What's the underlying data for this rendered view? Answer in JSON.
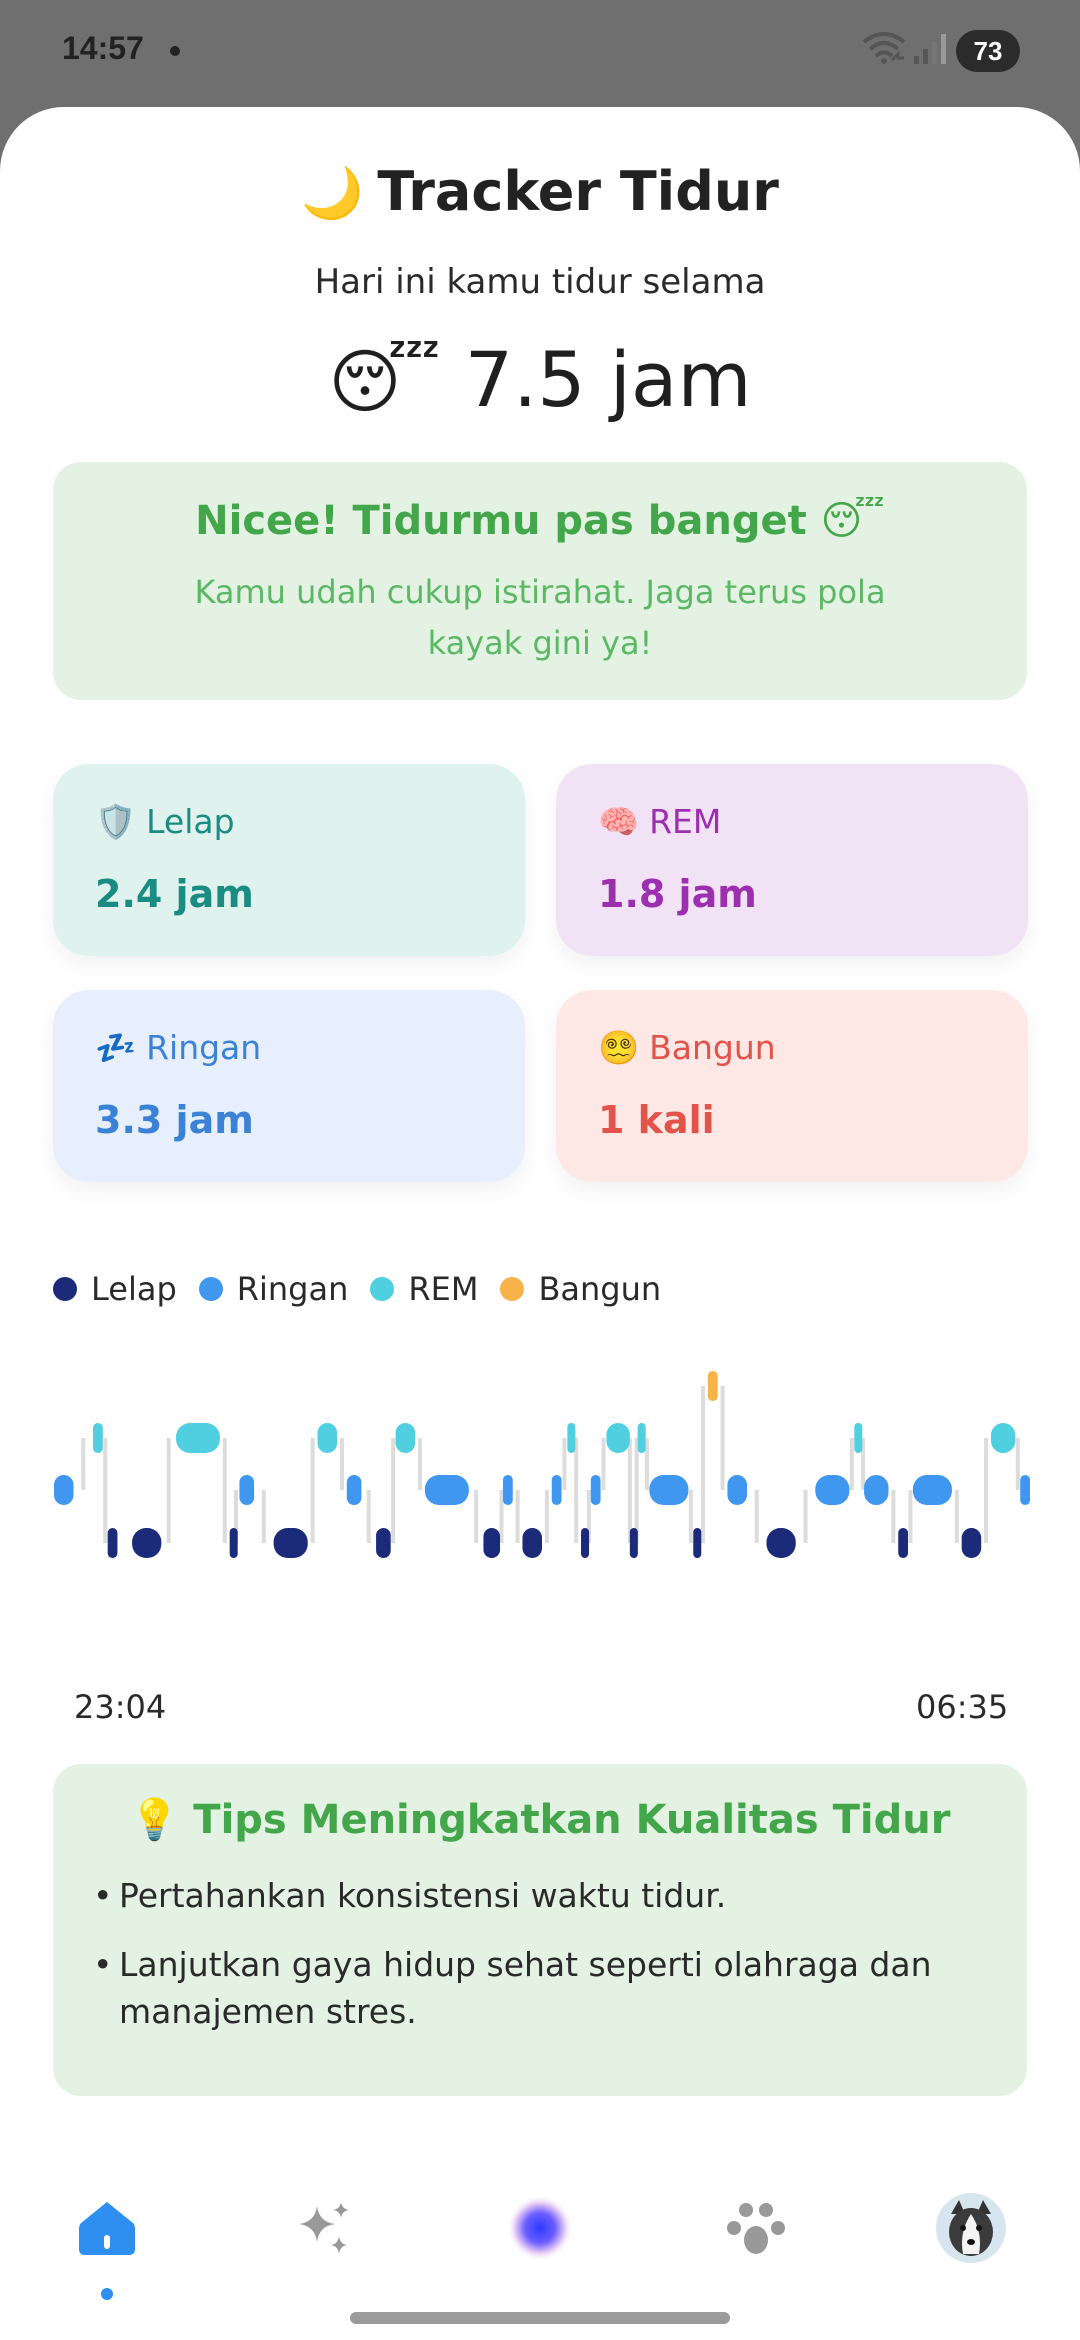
{
  "status_bar": {
    "time": "14:57",
    "battery": "73"
  },
  "header": {
    "icon": "crescent-moon",
    "title": "Tracker Tidur"
  },
  "summary": {
    "label": "Hari ini kamu tidur selama",
    "emoji": "sleeping-face",
    "hours": "7.5 jam"
  },
  "message": {
    "title": "Nicee! Tidurmu pas banget 😴",
    "body": "Kamu udah cukup istirahat. Jaga terus pola kayak gini ya!",
    "background": "#e3f2e3",
    "color": "#43a64a"
  },
  "stats": [
    {
      "icon": "shield-icon",
      "label": "Lelap",
      "value": "2.4 jam",
      "color": "#1a8c82"
    },
    {
      "icon": "brain-icon",
      "label": "REM",
      "value": "1.8 jam",
      "color": "#9b2fae"
    },
    {
      "icon": "zzz-icon",
      "label": "Ringan",
      "value": "3.3 jam",
      "color": "#3b82d6"
    },
    {
      "icon": "dizzy-face-icon",
      "label": "Bangun",
      "value": "1 kali",
      "color": "#e25449"
    }
  ],
  "legend": [
    {
      "name": "Lelap",
      "color": "#1c2a7a"
    },
    {
      "name": "Ringan",
      "color": "#3f97ef"
    },
    {
      "name": "REM",
      "color": "#4fcfdf"
    },
    {
      "name": "Bangun",
      "color": "#f7b24a"
    }
  ],
  "chart_data": {
    "type": "hypnogram",
    "start": "23:04",
    "end": "06:35",
    "levels": [
      "Bangun",
      "REM",
      "Ringan",
      "Lelap"
    ],
    "segments": [
      [
        "Ringan",
        0.0,
        2.0
      ],
      [
        "REM",
        4.0,
        5.0
      ],
      [
        "Lelap",
        5.5,
        6.5
      ],
      [
        "Lelap",
        8.0,
        11.0
      ],
      [
        "REM",
        12.5,
        17.0
      ],
      [
        "Lelap",
        18.0,
        18.3
      ],
      [
        "Ringan",
        19.0,
        20.5
      ],
      [
        "Lelap",
        22.5,
        26.0
      ],
      [
        "REM",
        27.0,
        29.0
      ],
      [
        "Ringan",
        30.0,
        31.5
      ],
      [
        "Lelap",
        33.0,
        34.5
      ],
      [
        "REM",
        35.0,
        37.0
      ],
      [
        "Ringan",
        38.0,
        42.5
      ],
      [
        "Lelap",
        44.0,
        45.7
      ],
      [
        "Ringan",
        46.0,
        47.0
      ],
      [
        "Lelap",
        48.0,
        50.0
      ],
      [
        "Ringan",
        51.0,
        52.0
      ],
      [
        "REM",
        52.6,
        53.0
      ],
      [
        "Lelap",
        54.0,
        54.6
      ],
      [
        "Ringan",
        55.0,
        56.0
      ],
      [
        "REM",
        56.6,
        59.0
      ],
      [
        "Lelap",
        59.0,
        59.6
      ],
      [
        "REM",
        59.8,
        60.5
      ],
      [
        "Ringan",
        61.0,
        65.0
      ],
      [
        "Lelap",
        65.5,
        66.0
      ],
      [
        "Bangun",
        67.0,
        68.0
      ],
      [
        "Ringan",
        69.0,
        71.0
      ],
      [
        "Lelap",
        73.0,
        76.0
      ],
      [
        "Ringan",
        78.0,
        81.5
      ],
      [
        "REM",
        82.0,
        82.8
      ],
      [
        "Ringan",
        83.0,
        85.5
      ],
      [
        "Lelap",
        86.5,
        87.5
      ],
      [
        "Ringan",
        88.0,
        92.0
      ],
      [
        "Lelap",
        93.0,
        95.0
      ],
      [
        "REM",
        96.0,
        98.5
      ],
      [
        "Ringan",
        99.0,
        100.0
      ]
    ]
  },
  "tips": {
    "title": "💡 Tips Meningkatkan Kualitas Tidur",
    "items": [
      "Pertahankan konsistensi waktu tidur.",
      "Lanjutkan gaya hidup sehat seperti olahraga dan manajemen stres."
    ]
  },
  "nav": [
    {
      "name": "home",
      "icon": "home-icon",
      "active": true
    },
    {
      "name": "ai",
      "icon": "sparkles-icon"
    },
    {
      "name": "assistant",
      "icon": "orb-icon"
    },
    {
      "name": "community",
      "icon": "people-icon"
    },
    {
      "name": "profile",
      "icon": "avatar"
    }
  ]
}
